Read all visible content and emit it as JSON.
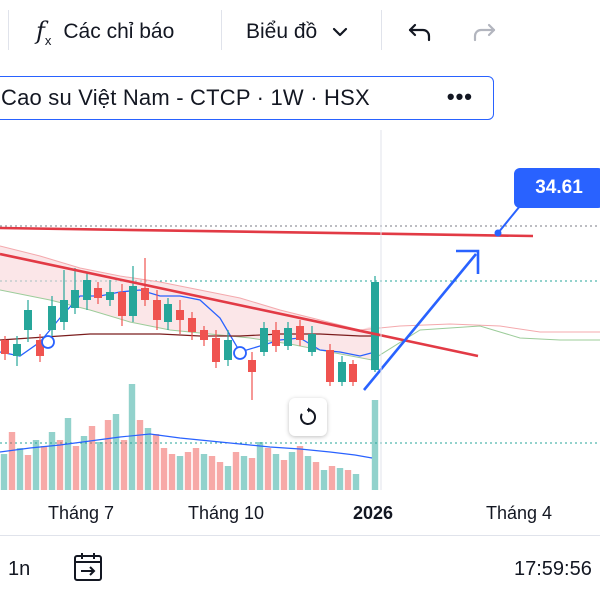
{
  "toolbar": {
    "indicators_label": "Các chỉ báo",
    "chart_type_label": "Biểu đồ"
  },
  "symbol": {
    "title": "Cao su Việt Nam - CTCP · 1W · HSX"
  },
  "price_label": "34.61",
  "x_axis": {
    "labels": [
      "Tháng 7",
      "Tháng 10",
      "2026",
      "Tháng 4"
    ]
  },
  "bottom_bar": {
    "range_label": "1n",
    "time": "17:59:56"
  },
  "colors": {
    "up": "#26a69a",
    "down": "#ef5350",
    "accent": "#2962ff",
    "trendline": "#e23a45"
  },
  "chart_data": {
    "type": "candlestick",
    "title": "Cao su Việt Nam - CTCP · 1W · HSX",
    "annotation_price": 34.61,
    "x_tick_labels": [
      "Tháng 7",
      "Tháng 10",
      "2026",
      "Tháng 4"
    ],
    "grid": false
  }
}
